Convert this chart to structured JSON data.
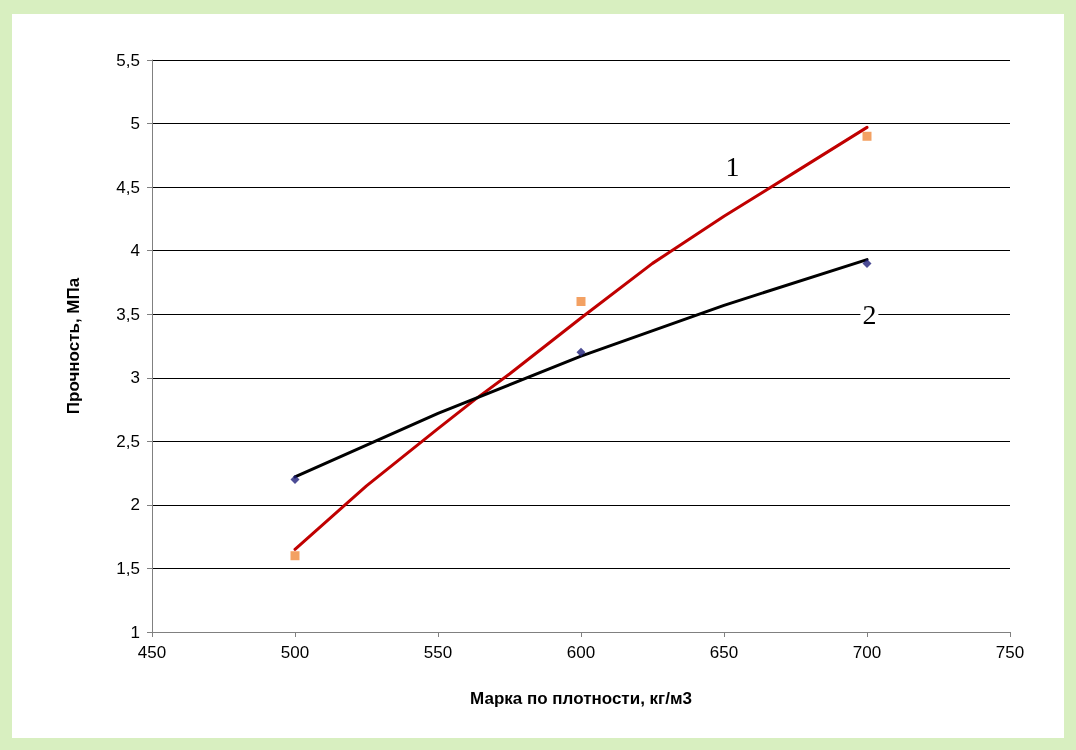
{
  "chart_data": {
    "type": "scatter",
    "xlabel": "Марка по плотности, кг/м3",
    "ylabel": "Прочность, МПа",
    "xlim": [
      450,
      750
    ],
    "xticks": [
      450,
      500,
      550,
      600,
      650,
      700,
      750
    ],
    "ylim": [
      1,
      5.5
    ],
    "yticks": [
      1,
      {
        "value": 1.5,
        "label": "1,5"
      },
      2,
      {
        "value": 2.5,
        "label": "2,5"
      },
      3,
      {
        "value": 3.5,
        "label": "3,5"
      },
      4,
      {
        "value": 4.5,
        "label": "4,5"
      },
      5,
      {
        "value": 5.5,
        "label": "5,5"
      }
    ],
    "grid": "y",
    "series": [
      {
        "type": "line",
        "color": "#c00000",
        "marker": "none",
        "x": [
          500,
          525,
          550,
          563,
          575,
          600,
          625,
          650,
          675,
          700
        ],
        "values": [
          1.65,
          2.15,
          2.6,
          2.83,
          3.03,
          3.47,
          3.9,
          4.27,
          4.62,
          4.97
        ]
      },
      {
        "type": "line",
        "color": "#000000",
        "marker": "none",
        "x": [
          500,
          550,
          600,
          650,
          700
        ],
        "values": [
          2.22,
          2.72,
          3.17,
          3.57,
          3.93
        ]
      },
      {
        "color": "#f08a3c",
        "marker": "square",
        "x": [
          500,
          600,
          700
        ],
        "values": [
          1.6,
          3.6,
          4.9
        ]
      },
      {
        "color": "#1f1f7a",
        "marker": "diamond",
        "x": [
          500,
          600,
          700
        ],
        "values": [
          2.2,
          3.2,
          3.9
        ]
      }
    ],
    "annotations": [
      "1",
      "2"
    ]
  }
}
